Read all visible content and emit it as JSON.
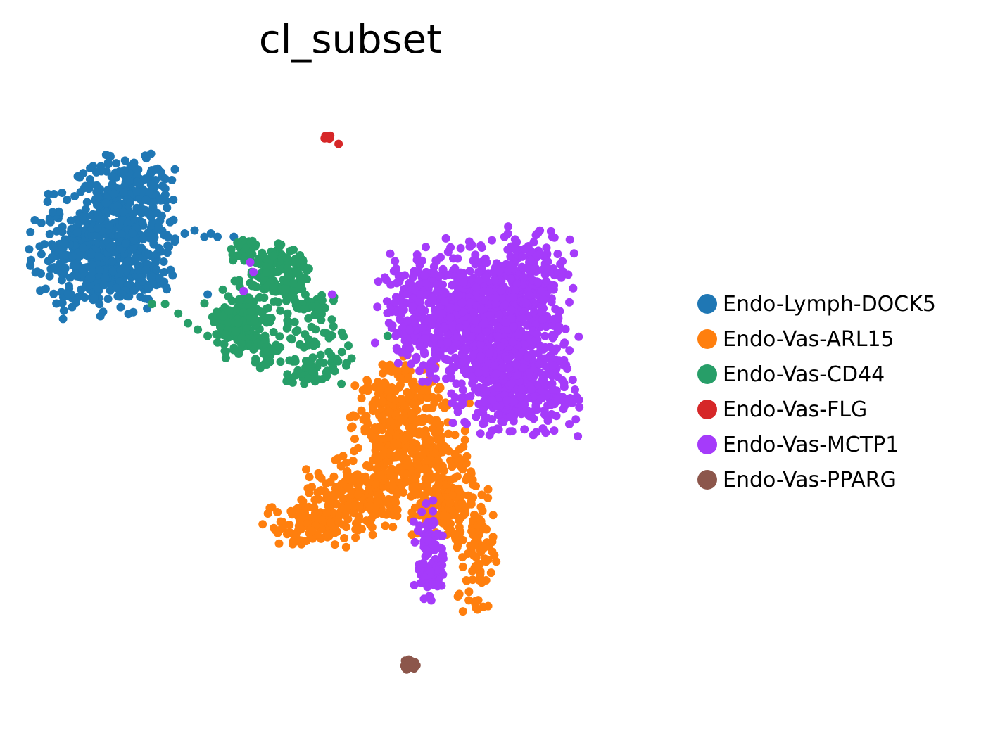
{
  "chart_data": {
    "type": "scatter",
    "title": "cl_subset",
    "xlabel": "",
    "ylabel": "",
    "axes_visible": false,
    "grid": false,
    "legend_position": "right",
    "xlim": [
      0,
      10
    ],
    "ylim": [
      0,
      10
    ],
    "series": [
      {
        "name": "Endo-Lymph-DOCK5",
        "color": "#1f77b4",
        "clusters": [
          {
            "cx": 1.1,
            "cy": 7.1,
            "sx": 0.45,
            "sy": 0.45,
            "n": 380
          },
          {
            "cx": 1.6,
            "cy": 7.95,
            "sx": 0.35,
            "sy": 0.35,
            "n": 260
          },
          {
            "cx": 1.85,
            "cy": 7.05,
            "sx": 0.25,
            "sy": 0.3,
            "n": 100
          }
        ],
        "points": [
          {
            "x": 2.5,
            "y": 7.45
          },
          {
            "x": 2.65,
            "y": 7.5
          },
          {
            "x": 2.8,
            "y": 7.4
          },
          {
            "x": 3.0,
            "y": 7.4
          },
          {
            "x": 3.25,
            "y": 7.4
          },
          {
            "x": 2.9,
            "y": 7.45
          },
          {
            "x": 2.85,
            "y": 6.5
          }
        ]
      },
      {
        "name": "Endo-Vas-ARL15",
        "color": "#ff7f0e",
        "clusters": [
          {
            "cx": 5.75,
            "cy": 4.7,
            "sx": 0.35,
            "sy": 0.4,
            "n": 260
          },
          {
            "cx": 5.2,
            "cy": 3.35,
            "sx": 0.45,
            "sy": 0.3,
            "n": 240
          },
          {
            "cx": 4.4,
            "cy": 2.9,
            "sx": 0.35,
            "sy": 0.18,
            "n": 90
          },
          {
            "cx": 6.5,
            "cy": 3.3,
            "sx": 0.25,
            "sy": 0.35,
            "n": 150
          },
          {
            "cx": 6.95,
            "cy": 2.5,
            "sx": 0.15,
            "sy": 0.45,
            "n": 80
          },
          {
            "cx": 6.1,
            "cy": 3.95,
            "sx": 0.35,
            "sy": 0.3,
            "n": 140
          }
        ],
        "points": [
          {
            "x": 4.0,
            "y": 2.85
          },
          {
            "x": 4.1,
            "y": 2.9
          },
          {
            "x": 6.95,
            "y": 1.6
          },
          {
            "x": 5.25,
            "y": 4.4
          },
          {
            "x": 5.15,
            "y": 4.1
          },
          {
            "x": 6.9,
            "y": 3.6
          },
          {
            "x": 6.85,
            "y": 4.8
          }
        ]
      },
      {
        "name": "Endo-Vas-CD44",
        "color": "#279e68",
        "clusters": [
          {
            "cx": 3.35,
            "cy": 6.1,
            "sx": 0.25,
            "sy": 0.3,
            "n": 190
          },
          {
            "cx": 4.0,
            "cy": 6.75,
            "sx": 0.25,
            "sy": 0.25,
            "n": 130
          },
          {
            "cx": 3.45,
            "cy": 7.2,
            "sx": 0.15,
            "sy": 0.1,
            "n": 35
          },
          {
            "cx": 4.45,
            "cy": 5.3,
            "sx": 0.25,
            "sy": 0.12,
            "n": 45
          },
          {
            "cx": 4.5,
            "cy": 6.35,
            "sx": 0.15,
            "sy": 0.08,
            "n": 25
          },
          {
            "cx": 4.25,
            "cy": 5.85,
            "sx": 0.35,
            "sy": 0.2,
            "n": 40
          },
          {
            "cx": 3.75,
            "cy": 5.55,
            "sx": 0.1,
            "sy": 0.1,
            "n": 20
          }
        ],
        "points": [
          {
            "x": 2.0,
            "y": 6.35
          },
          {
            "x": 2.2,
            "y": 6.35
          },
          {
            "x": 2.4,
            "y": 6.2
          },
          {
            "x": 2.55,
            "y": 6.05
          },
          {
            "x": 2.7,
            "y": 5.95
          },
          {
            "x": 2.85,
            "y": 5.85
          },
          {
            "x": 3.0,
            "y": 5.75
          },
          {
            "x": 4.7,
            "y": 5.6
          },
          {
            "x": 4.9,
            "y": 5.6
          },
          {
            "x": 5.05,
            "y": 5.5
          },
          {
            "x": 5.0,
            "y": 5.7
          },
          {
            "x": 3.85,
            "y": 7.1
          },
          {
            "x": 3.95,
            "y": 7.25
          },
          {
            "x": 5.6,
            "y": 5.85
          }
        ]
      },
      {
        "name": "Endo-Vas-FLG",
        "color": "#d62728",
        "clusters": [
          {
            "cx": 4.7,
            "cy": 8.95,
            "sx": 0.04,
            "sy": 0.03,
            "n": 14
          }
        ],
        "points": [
          {
            "x": 4.85,
            "y": 8.85
          }
        ]
      },
      {
        "name": "Endo-Vas-MCTP1",
        "color": "#a53bfa",
        "clusters": [
          {
            "cx": 7.0,
            "cy": 6.2,
            "sx": 0.55,
            "sy": 0.55,
            "n": 600
          },
          {
            "cx": 7.55,
            "cy": 5.15,
            "sx": 0.45,
            "sy": 0.4,
            "n": 450
          },
          {
            "cx": 6.1,
            "cy": 6.3,
            "sx": 0.35,
            "sy": 0.4,
            "n": 200
          },
          {
            "cx": 6.25,
            "cy": 2.4,
            "sx": 0.12,
            "sy": 0.4,
            "n": 110
          },
          {
            "cx": 7.8,
            "cy": 6.6,
            "sx": 0.3,
            "sy": 0.45,
            "n": 200
          }
        ],
        "points": [
          {
            "x": 3.5,
            "y": 7.0
          },
          {
            "x": 3.55,
            "y": 6.85
          },
          {
            "x": 3.4,
            "y": 6.55
          },
          {
            "x": 4.75,
            "y": 6.5
          }
        ]
      },
      {
        "name": "Endo-Vas-PPARG",
        "color": "#8c564b",
        "clusters": [
          {
            "cx": 5.95,
            "cy": 0.7,
            "sx": 0.05,
            "sy": 0.06,
            "n": 28
          }
        ],
        "points": []
      }
    ]
  }
}
